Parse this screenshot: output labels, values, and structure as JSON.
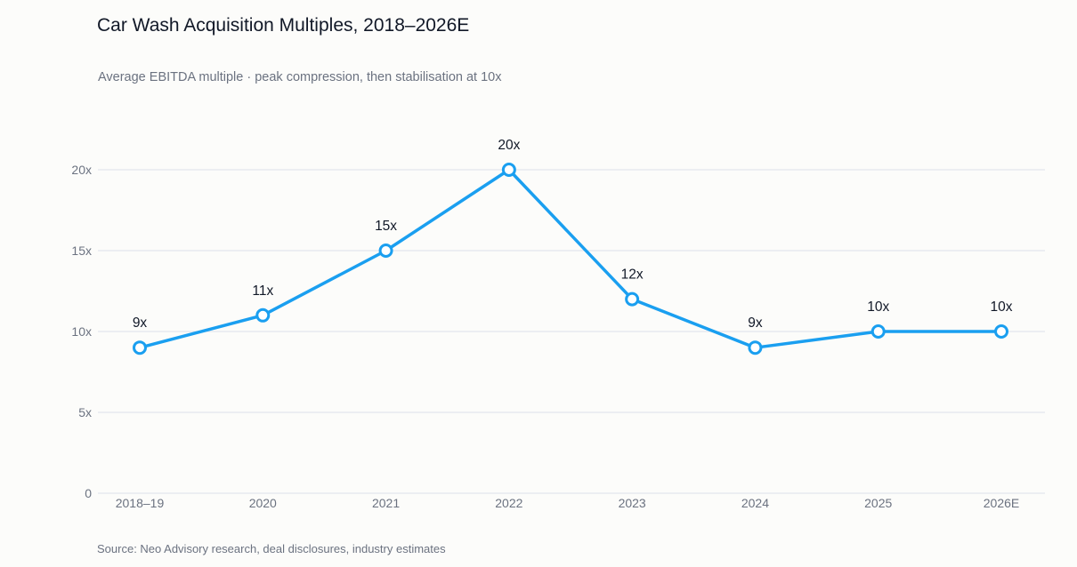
{
  "header": {
    "title": "Car Wash Acquisition Multiples, 2018–2026E",
    "subtitle": "Average EBITDA multiple · peak compression, then stabilisation at 10x"
  },
  "footer": {
    "source": "Source: Neo Advisory research, deal disclosures, industry estimates"
  },
  "colors": {
    "line": "#1a9ff0",
    "peak_label": "#e8711a",
    "grid": "#e3e6ee",
    "marker_fill": "#ffffff"
  },
  "chart_data": {
    "type": "line",
    "title": "Car Wash Acquisition Multiples, 2018–2026E",
    "subtitle": "Average EBITDA multiple · peak compression, then stabilisation at 10x",
    "xlabel": "",
    "ylabel": "",
    "categories": [
      "2018–19",
      "2020",
      "2021",
      "2022",
      "2023",
      "2024",
      "2025",
      "2026E"
    ],
    "series": [
      {
        "values": [
          9,
          11,
          15,
          20,
          12,
          9,
          10,
          10
        ],
        "labels": [
          "9x",
          "11x",
          "15x",
          "20x",
          "12x",
          "9x",
          "10x",
          "10x"
        ]
      }
    ],
    "highlight_index": 3,
    "ylim": [
      0,
      20
    ],
    "yticks": [
      0,
      5,
      10,
      15,
      20
    ],
    "ytick_labels": [
      "0",
      "5x",
      "10x",
      "15x",
      "20x"
    ],
    "grid": true,
    "legend": "none"
  }
}
